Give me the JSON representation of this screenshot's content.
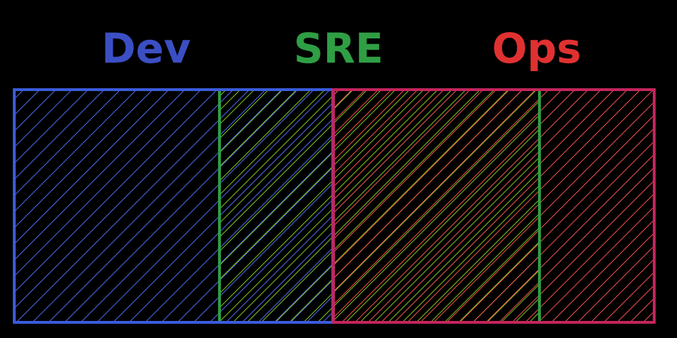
{
  "labels": {
    "dev": "Dev",
    "sre": "SRE",
    "ops": "Ops"
  },
  "colors": {
    "dev_stroke": "#3b5bdb",
    "dev_hatch": "#4c6ef5",
    "dev_text": "#3b4fc4",
    "sre_stroke": "#2f9e44",
    "sre_hatch": "#82c91e",
    "sre_text": "#2f9e44",
    "ops_stroke": "#c2255c",
    "ops_hatch": "#fa5252",
    "ops_text": "#e03131"
  }
}
